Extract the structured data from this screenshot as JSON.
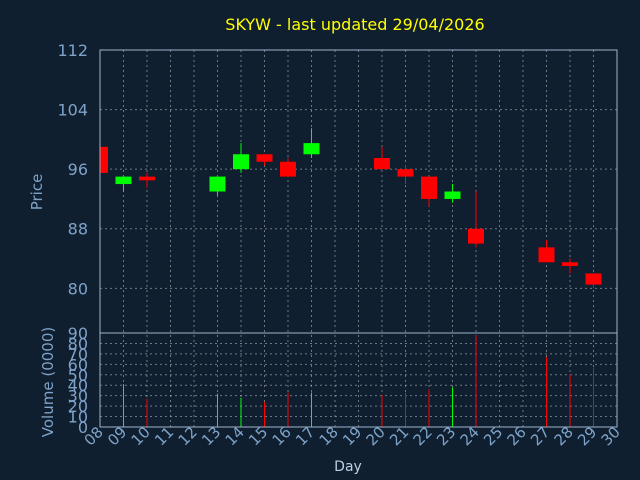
{
  "chart_data": {
    "type": "candlestick",
    "title": "SKYW - last updated 29/04/2026",
    "price_ylabel": "Price",
    "volume_ylabel": "Volume (0000)",
    "xlabel": "Day",
    "x_ticks": [
      "08",
      "09",
      "10",
      "11",
      "12",
      "13",
      "14",
      "15",
      "16",
      "17",
      "18",
      "19",
      "20",
      "21",
      "22",
      "23",
      "24",
      "25",
      "26",
      "27",
      "28",
      "29",
      "30"
    ],
    "price_ylim": [
      74,
      112
    ],
    "price_ticks": [
      112,
      104,
      96,
      88,
      80
    ],
    "volume_ylim": [
      0,
      90
    ],
    "volume_ticks": [
      90,
      80,
      70,
      60,
      50,
      40,
      30,
      20,
      10,
      0
    ],
    "grid": true,
    "up_color": "#00ff00",
    "down_color": "#ff0000",
    "candles": [
      {
        "day": "08",
        "open": 99.0,
        "high": 99.0,
        "low": 95.0,
        "close": 95.5,
        "volume": 0
      },
      {
        "day": "09",
        "open": 94.0,
        "high": 95.0,
        "low": 93.0,
        "close": 95.0,
        "volume": 41
      },
      {
        "day": "10",
        "open": 95.0,
        "high": 95.5,
        "low": 93.5,
        "close": 94.5,
        "volume": 27
      },
      {
        "day": "13",
        "open": 93.0,
        "high": 95.0,
        "low": 92.5,
        "close": 95.0,
        "volume": 32
      },
      {
        "day": "14",
        "open": 96.0,
        "high": 99.5,
        "low": 95.5,
        "close": 98.0,
        "volume": 28
      },
      {
        "day": "15",
        "open": 98.0,
        "high": 98.0,
        "low": 96.5,
        "close": 97.0,
        "volume": 24
      },
      {
        "day": "16",
        "open": 97.0,
        "high": 97.5,
        "low": 95.0,
        "close": 95.0,
        "volume": 33
      },
      {
        "day": "17",
        "open": 98.0,
        "high": 101.5,
        "low": 97.5,
        "close": 99.5,
        "volume": 33
      },
      {
        "day": "20",
        "open": 97.5,
        "high": 99.0,
        "low": 96.0,
        "close": 96.0,
        "volume": 31
      },
      {
        "day": "21",
        "open": 96.0,
        "high": 96.5,
        "low": 94.0,
        "close": 95.0,
        "volume": 33
      },
      {
        "day": "22",
        "open": 95.0,
        "high": 95.0,
        "low": 91.0,
        "close": 92.0,
        "volume": 36
      },
      {
        "day": "23",
        "open": 92.0,
        "high": 94.0,
        "low": 91.5,
        "close": 93.0,
        "volume": 38
      },
      {
        "day": "24",
        "open": 88.0,
        "high": 93.0,
        "low": 85.5,
        "close": 86.0,
        "volume": 88
      },
      {
        "day": "27",
        "open": 85.5,
        "high": 86.5,
        "low": 83.5,
        "close": 83.5,
        "volume": 67
      },
      {
        "day": "28",
        "open": 83.5,
        "high": 84.0,
        "low": 82.0,
        "close": 83.0,
        "volume": 50
      },
      {
        "day": "29",
        "open": 82.0,
        "high": 82.0,
        "low": 80.0,
        "close": 80.5,
        "volume": 57
      }
    ]
  }
}
